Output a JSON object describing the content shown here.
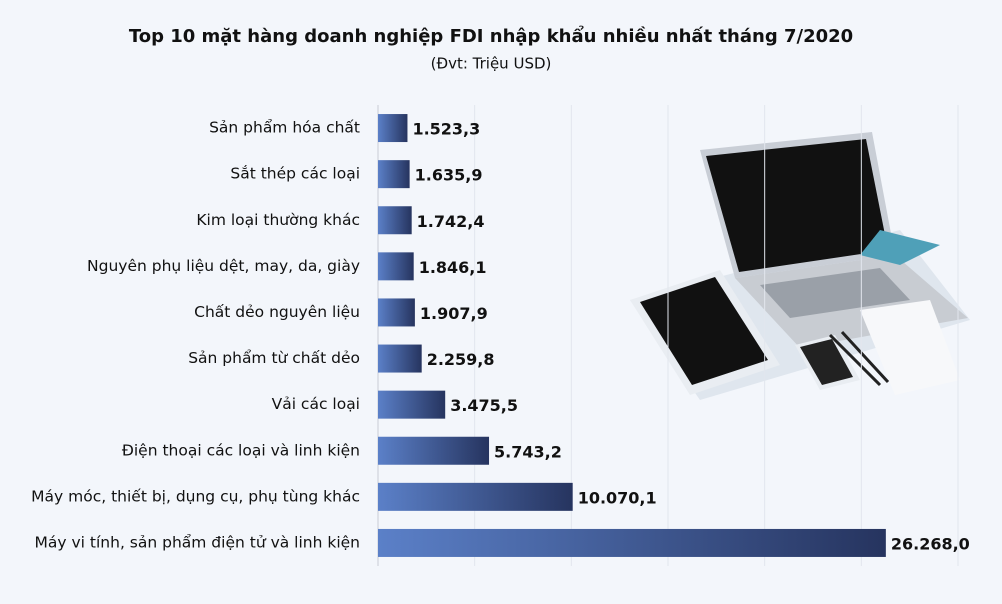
{
  "chart_data": {
    "type": "bar",
    "orientation": "horizontal",
    "title": "Top 10 mặt hàng doanh nghiệp FDI nhập khẩu nhiều nhất tháng 7/2020",
    "subtitle": "(Đvt: Triệu USD)",
    "categories": [
      "Sản phẩm hóa chất",
      "Sắt thép các loại",
      "Kim loại thường khác",
      "Nguyên phụ liệu dệt, may, da, giày",
      "Chất dẻo nguyên liệu",
      "Sản phẩm từ chất dẻo",
      "Vải các loại",
      "Điện thoại các loại và linh kiện",
      "Máy móc, thiết bị, dụng cụ, phụ tùng khác",
      "Máy vi tính, sản phẩm điện tử và linh kiện"
    ],
    "values": [
      1523.3,
      1635.9,
      1742.4,
      1846.1,
      1907.9,
      2259.8,
      3475.5,
      5743.2,
      10070.1,
      26268.0
    ],
    "value_labels": [
      "1.523,3",
      "1.635,9",
      "1.742,4",
      "1.846,1",
      "1.907,9",
      "2.259,8",
      "3.475,5",
      "5.743,2",
      "10.070,1",
      "26.268,0"
    ],
    "colors": [
      "#5b80c8",
      "#26345f"
    ],
    "xlim": [
      0,
      30000
    ],
    "xticks": [
      0,
      5000,
      10000,
      15000,
      20000,
      25000,
      30000
    ],
    "grid": true
  }
}
